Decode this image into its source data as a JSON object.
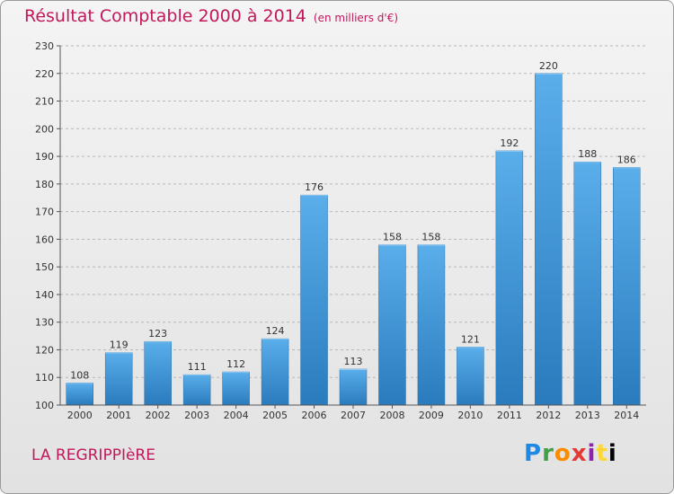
{
  "chart_data": {
    "type": "bar",
    "title": "Résultat Comptable 2000 à 2014",
    "subtitle": "(en milliers d'€)",
    "xlabel": "",
    "ylabel": "",
    "categories": [
      "2000",
      "2001",
      "2002",
      "2003",
      "2004",
      "2005",
      "2006",
      "2007",
      "2008",
      "2009",
      "2010",
      "2011",
      "2012",
      "2013",
      "2014"
    ],
    "values": [
      108,
      119,
      123,
      111,
      112,
      124,
      176,
      113,
      158,
      158,
      121,
      192,
      220,
      188,
      186
    ],
    "ylim": [
      100,
      230
    ],
    "yticks": [
      100,
      110,
      120,
      130,
      140,
      150,
      160,
      170,
      180,
      190,
      200,
      210,
      220,
      230
    ],
    "grid": "horizontal dashed",
    "legend": "none",
    "bar_color": "#3a8fd3"
  },
  "location": "LA REGRIPPIèRE",
  "logo_text": "Proxiti"
}
